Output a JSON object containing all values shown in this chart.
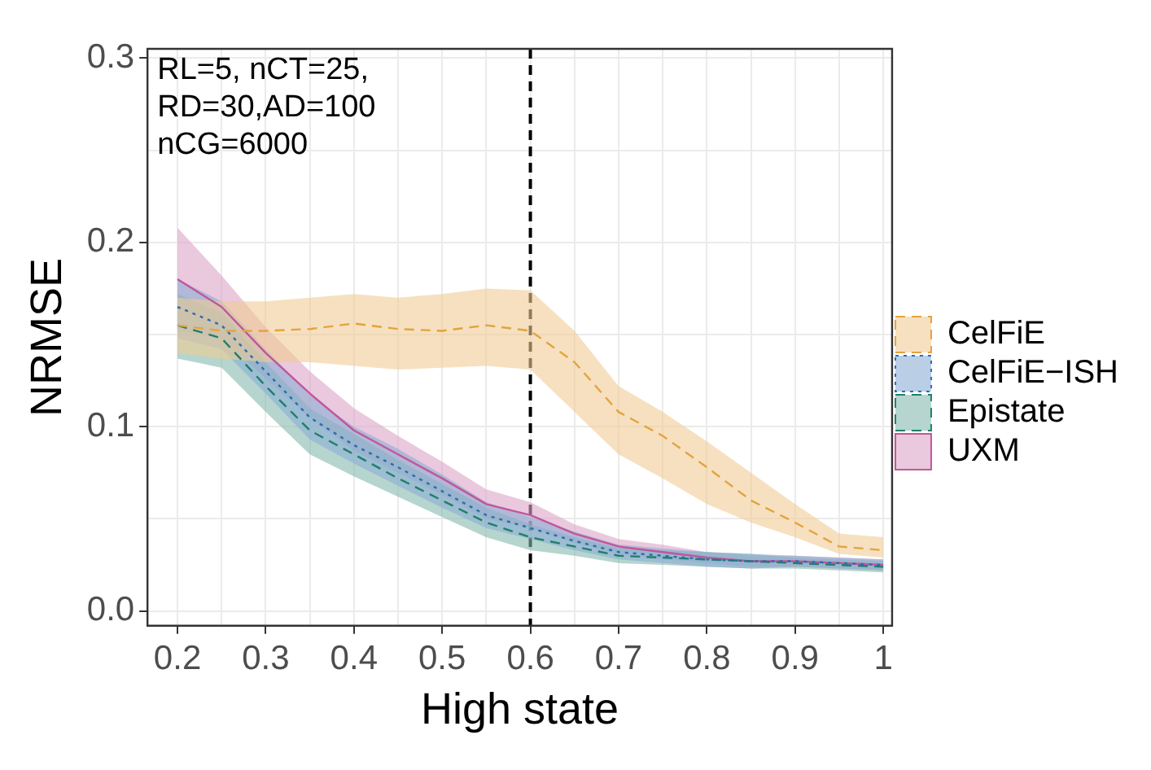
{
  "chart_data": {
    "type": "line",
    "xlabel": "High state",
    "ylabel": "NRMSE",
    "x": [
      0.2,
      0.25,
      0.3,
      0.35,
      0.4,
      0.45,
      0.5,
      0.55,
      0.6,
      0.65,
      0.7,
      0.75,
      0.8,
      0.85,
      0.9,
      0.95,
      1
    ],
    "series": [
      {
        "name": "CelFiE",
        "color": "#e3a33f",
        "line_style": "dashed",
        "values": [
          0.155,
          0.152,
          0.152,
          0.153,
          0.156,
          0.153,
          0.152,
          0.155,
          0.152,
          0.135,
          0.108,
          0.095,
          0.078,
          0.06,
          0.048,
          0.035,
          0.033
        ],
        "lower": [
          0.14,
          0.137,
          0.135,
          0.135,
          0.133,
          0.131,
          0.132,
          0.133,
          0.131,
          0.108,
          0.085,
          0.072,
          0.058,
          0.048,
          0.04,
          0.031,
          0.029
        ],
        "upper": [
          0.17,
          0.168,
          0.168,
          0.17,
          0.172,
          0.17,
          0.172,
          0.175,
          0.174,
          0.152,
          0.122,
          0.108,
          0.092,
          0.075,
          0.058,
          0.042,
          0.04
        ]
      },
      {
        "name": "CelFiE−ISH",
        "color": "#2d6bb5",
        "line_style": "dotted",
        "values": [
          0.165,
          0.155,
          0.13,
          0.105,
          0.09,
          0.078,
          0.065,
          0.052,
          0.045,
          0.038,
          0.032,
          0.03,
          0.028,
          0.027,
          0.027,
          0.026,
          0.025
        ],
        "lower": [
          0.148,
          0.142,
          0.118,
          0.093,
          0.08,
          0.068,
          0.056,
          0.045,
          0.039,
          0.033,
          0.028,
          0.026,
          0.024,
          0.023,
          0.024,
          0.023,
          0.022
        ],
        "upper": [
          0.18,
          0.168,
          0.142,
          0.117,
          0.1,
          0.088,
          0.074,
          0.059,
          0.051,
          0.043,
          0.036,
          0.034,
          0.032,
          0.031,
          0.03,
          0.029,
          0.028
        ]
      },
      {
        "name": "Epistate",
        "color": "#1f7f6a",
        "line_style": "dashed",
        "values": [
          0.155,
          0.148,
          0.122,
          0.098,
          0.085,
          0.072,
          0.06,
          0.048,
          0.04,
          0.035,
          0.03,
          0.029,
          0.028,
          0.027,
          0.026,
          0.025,
          0.024
        ],
        "lower": [
          0.137,
          0.132,
          0.108,
          0.085,
          0.073,
          0.062,
          0.051,
          0.04,
          0.033,
          0.03,
          0.026,
          0.025,
          0.024,
          0.023,
          0.023,
          0.022,
          0.021
        ],
        "upper": [
          0.172,
          0.162,
          0.135,
          0.11,
          0.096,
          0.082,
          0.069,
          0.056,
          0.047,
          0.04,
          0.034,
          0.033,
          0.032,
          0.031,
          0.029,
          0.028,
          0.027
        ]
      },
      {
        "name": "UXM",
        "color": "#c0579a",
        "line_style": "solid",
        "values": [
          0.18,
          0.165,
          0.14,
          0.118,
          0.098,
          0.085,
          0.072,
          0.058,
          0.052,
          0.042,
          0.035,
          0.032,
          0.029,
          0.027,
          0.027,
          0.026,
          0.025
        ],
        "lower": [
          0.152,
          0.148,
          0.126,
          0.105,
          0.087,
          0.075,
          0.063,
          0.05,
          0.045,
          0.037,
          0.031,
          0.028,
          0.026,
          0.024,
          0.024,
          0.023,
          0.022
        ],
        "upper": [
          0.208,
          0.182,
          0.154,
          0.13,
          0.11,
          0.095,
          0.081,
          0.066,
          0.059,
          0.047,
          0.039,
          0.036,
          0.032,
          0.03,
          0.03,
          0.029,
          0.028
        ]
      }
    ],
    "xlim": [
      0.166,
      1.01
    ],
    "xticks": [
      0.2,
      {
        "value": 0.25,
        "label": null
      },
      0.3,
      {
        "value": 0.35,
        "label": null
      },
      0.4,
      {
        "value": 0.45,
        "label": null
      },
      0.5,
      {
        "value": 0.55,
        "label": null
      },
      0.6,
      {
        "value": 0.65,
        "label": null
      },
      0.7,
      {
        "value": 0.75,
        "label": null
      },
      0.8,
      {
        "value": 0.85,
        "label": null
      },
      0.9,
      {
        "value": 0.95,
        "label": null
      },
      1
    ],
    "ylim": [
      -0.008,
      0.305
    ],
    "yticks": [
      {
        "value": 0,
        "label": "0.0"
      },
      {
        "value": 0.05,
        "label": null
      },
      0.1,
      {
        "value": 0.15,
        "label": null
      },
      0.2,
      {
        "value": 0.25,
        "label": null
      },
      0.3
    ],
    "ref_lines": [
      {
        "axis": "x",
        "value": 0.6,
        "color": "#000000",
        "line_style": "dashed"
      }
    ],
    "annotations": [
      "RL=5, nCT=25,\nRD=30,AD=100\nnCG=6000"
    ],
    "grid": true,
    "legend": "right",
    "marker": "none"
  }
}
